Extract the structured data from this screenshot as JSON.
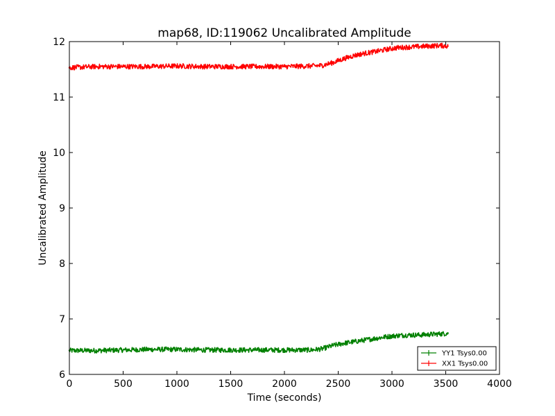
{
  "chart_data": {
    "type": "line",
    "title": "map68, ID:119062 Uncalibrated Amplitude",
    "xlabel": "Time (seconds)",
    "ylabel": "Uncalibrated Amplitude",
    "xlim": [
      0,
      4000
    ],
    "ylim": [
      6,
      12
    ],
    "xticks": [
      0,
      500,
      1000,
      1500,
      2000,
      2500,
      3000,
      3500,
      4000
    ],
    "yticks": [
      6,
      7,
      8,
      9,
      10,
      11,
      12
    ],
    "grid": false,
    "legend_position": "lower-right",
    "series": [
      {
        "name": "YY1 Tsys0.00",
        "color": "#008000",
        "x": [
          0,
          250,
          500,
          750,
          1000,
          1250,
          1500,
          1750,
          2000,
          2250,
          2350,
          2450,
          2550,
          2650,
          2750,
          2850,
          2950,
          3050,
          3150,
          3250,
          3350,
          3450,
          3520
        ],
        "y": [
          6.43,
          6.43,
          6.44,
          6.45,
          6.45,
          6.44,
          6.44,
          6.44,
          6.44,
          6.44,
          6.46,
          6.52,
          6.56,
          6.59,
          6.62,
          6.65,
          6.68,
          6.7,
          6.71,
          6.71,
          6.72,
          6.73,
          6.74
        ]
      },
      {
        "name": "XX1 Tsys0.00",
        "color": "#ff0000",
        "x": [
          0,
          250,
          500,
          750,
          1000,
          1250,
          1500,
          1750,
          2000,
          2250,
          2350,
          2450,
          2550,
          2650,
          2750,
          2850,
          2950,
          3050,
          3150,
          3250,
          3350,
          3450,
          3520
        ],
        "y": [
          11.53,
          11.55,
          11.55,
          11.55,
          11.56,
          11.55,
          11.55,
          11.55,
          11.55,
          11.56,
          11.57,
          11.62,
          11.69,
          11.75,
          11.79,
          11.82,
          11.86,
          11.89,
          11.9,
          11.91,
          11.92,
          11.93,
          11.92
        ]
      }
    ]
  }
}
